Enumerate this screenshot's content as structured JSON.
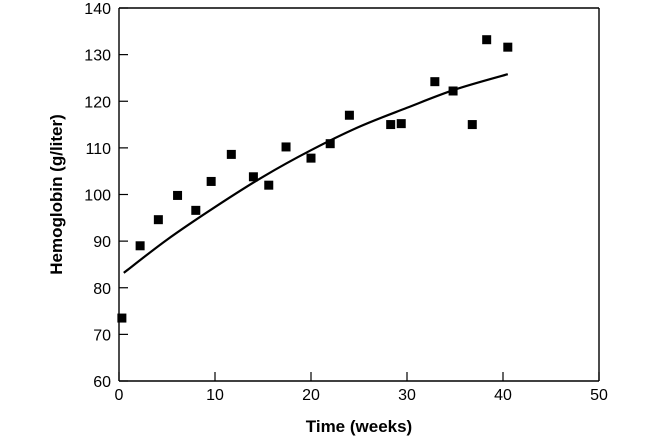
{
  "chart_data": {
    "type": "scatter",
    "title": "",
    "xlabel": "Time (weeks)",
    "ylabel": "Hemoglobin (g/liter)",
    "xlim": [
      0,
      50
    ],
    "ylim": [
      60,
      140
    ],
    "xticks": [
      0,
      10,
      20,
      30,
      40,
      50
    ],
    "yticks": [
      60,
      70,
      80,
      90,
      100,
      110,
      120,
      130,
      140
    ],
    "grid": false,
    "legend": "none",
    "series": [
      {
        "kind": "points",
        "marker": "square",
        "x": [
          0.3,
          2.2,
          4.1,
          6.1,
          8.0,
          9.6,
          11.7,
          14.0,
          15.6,
          17.4,
          20.0,
          22.0,
          24.0,
          28.3,
          29.4,
          32.9,
          34.8,
          36.8,
          38.3,
          40.5
        ],
        "y": [
          73.5,
          89,
          94.6,
          99.8,
          96.6,
          102.8,
          108.6,
          103.8,
          102.0,
          110.2,
          107.8,
          110.9,
          117.0,
          115.0,
          115.2,
          124.2,
          122.2,
          115.0,
          133.2,
          131.6
        ]
      },
      {
        "kind": "fit-curve",
        "x": [
          0.5,
          5,
          10,
          15,
          20,
          25,
          30,
          35,
          40.5
        ],
        "y": [
          83.2,
          90.3,
          97.3,
          103.8,
          109.5,
          114.5,
          118.6,
          122.5,
          125.8
        ]
      }
    ]
  }
}
